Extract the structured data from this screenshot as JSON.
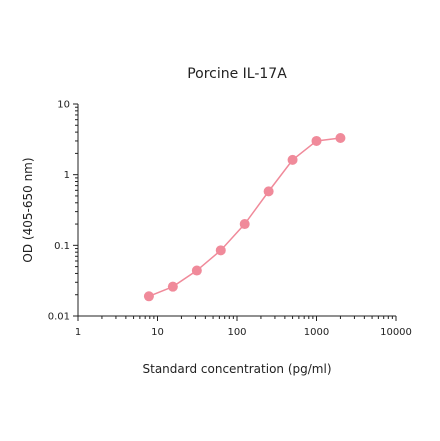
{
  "chart_data": {
    "type": "line",
    "title": "Porcine IL-17A",
    "xlabel": "Standard concentration (pg/ml)",
    "ylabel": "OD (405-650 nm)",
    "x_scale": "log",
    "y_scale": "log",
    "xlim": [
      1,
      10000
    ],
    "ylim": [
      0.01,
      10
    ],
    "x_ticks": [
      1,
      10,
      100,
      1000,
      10000
    ],
    "x_tick_labels": [
      "1",
      "10",
      "100",
      "1000",
      "10000"
    ],
    "y_ticks": [
      0.01,
      0.1,
      1,
      10
    ],
    "y_tick_labels": [
      "0.01",
      "0.1",
      "1",
      "10"
    ],
    "grid": false,
    "series": [
      {
        "color": "#f08a9a",
        "x": [
          7.8,
          15.6,
          31.25,
          62.5,
          125,
          250,
          500,
          1000,
          2000
        ],
        "y": [
          0.019,
          0.026,
          0.044,
          0.085,
          0.2,
          0.58,
          1.62,
          3.0,
          3.3
        ]
      }
    ]
  }
}
